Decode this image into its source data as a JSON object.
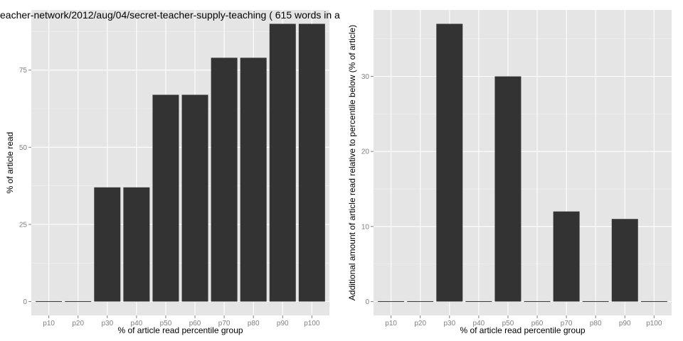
{
  "chart_data": [
    {
      "type": "bar",
      "title": "eacher-network/2012/aug/04/secret-teacher-supply-teaching ( 615 words in a",
      "xlabel": "% of article read percentile group",
      "ylabel": "% of article read",
      "categories": [
        "p10",
        "p20",
        "p30",
        "p40",
        "p50",
        "p60",
        "p70",
        "p80",
        "p90",
        "p100"
      ],
      "values": [
        0,
        0,
        37,
        37,
        67,
        67,
        79,
        79,
        90,
        90
      ],
      "ylim": [
        -4.5,
        94.5
      ],
      "yticks": [
        0,
        25,
        50,
        75
      ],
      "grid": true
    },
    {
      "type": "bar",
      "title": "",
      "xlabel": "% of article read percentile group",
      "ylabel": "Additional amount of article read relative to percentile below (% of article)",
      "categories": [
        "p10",
        "p20",
        "p30",
        "p40",
        "p50",
        "p60",
        "p70",
        "p80",
        "p90",
        "p100"
      ],
      "values": [
        0,
        0,
        37,
        0,
        30,
        0,
        12,
        0,
        11,
        0
      ],
      "ylim": [
        -1.85,
        38.85
      ],
      "yticks": [
        0,
        10,
        20,
        30
      ],
      "grid": true
    }
  ]
}
